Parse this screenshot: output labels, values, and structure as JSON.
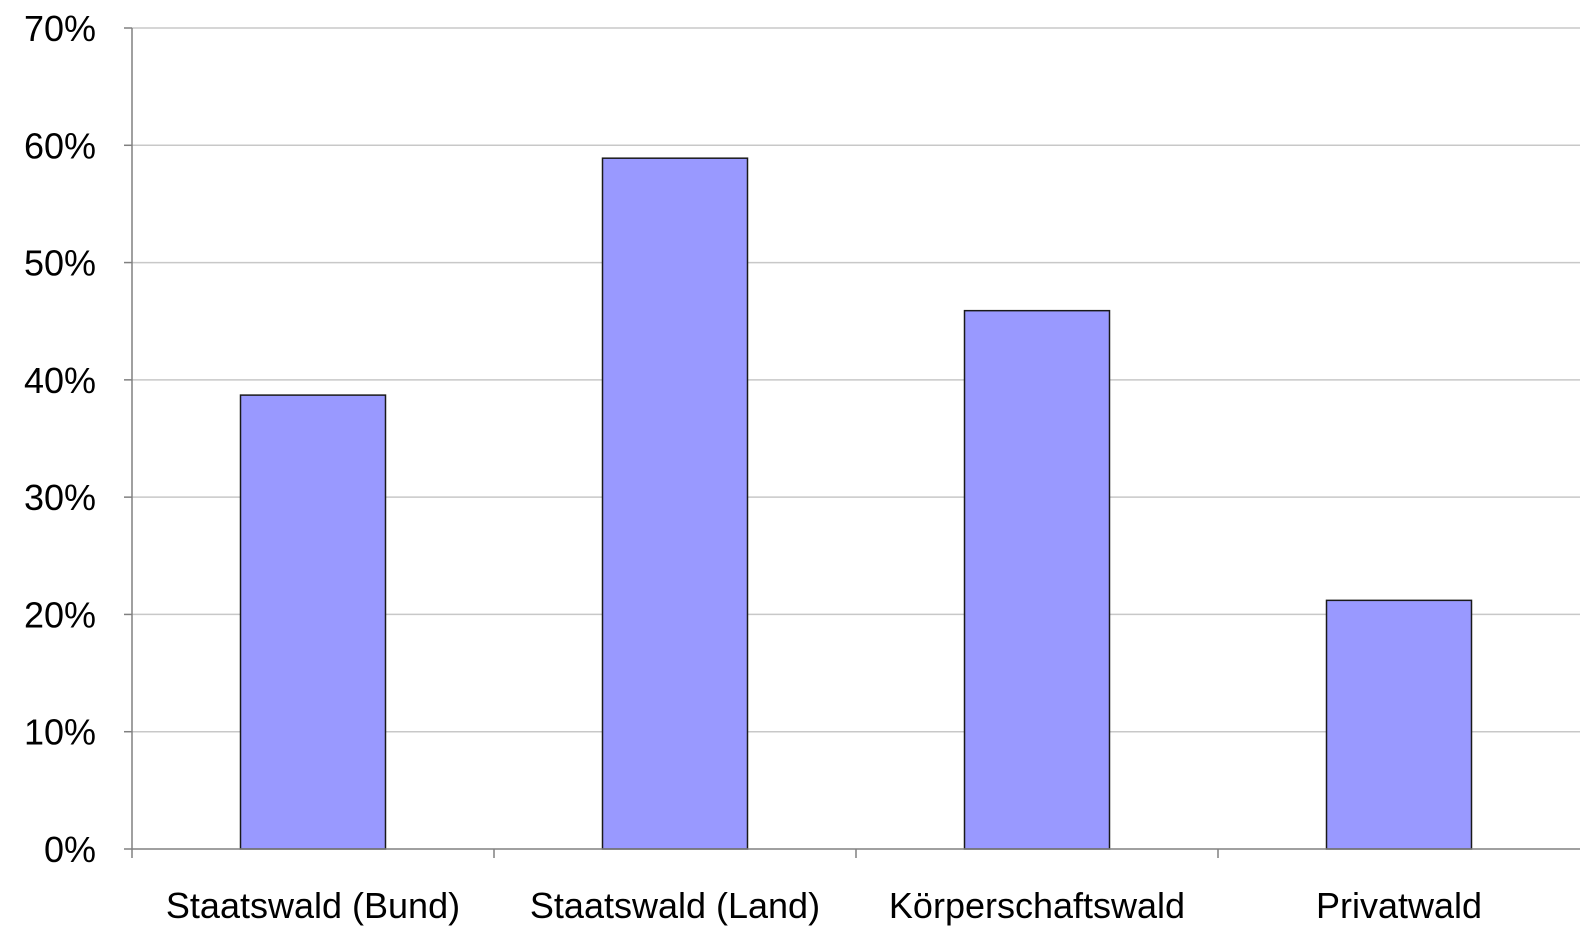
{
  "chart_data": {
    "type": "bar",
    "categories": [
      "Staatswald (Bund)",
      "Staatswald (Land)",
      "Körperschaftswald",
      "Privatwald"
    ],
    "values": [
      38.7,
      58.9,
      45.9,
      21.2
    ],
    "ylim": [
      0,
      70
    ],
    "yticks": [
      0,
      10,
      20,
      30,
      40,
      50,
      60,
      70
    ],
    "ytick_labels": [
      "0%",
      "10%",
      "20%",
      "30%",
      "40%",
      "50%",
      "60%",
      "70%"
    ],
    "title": "",
    "xlabel": "",
    "ylabel": "",
    "grid": true,
    "legend": "none",
    "colors": {
      "bar": "#9999ff",
      "bar_outline": "#1a1a1a",
      "grid": "#c8c8c8",
      "axis": "#808080"
    }
  }
}
